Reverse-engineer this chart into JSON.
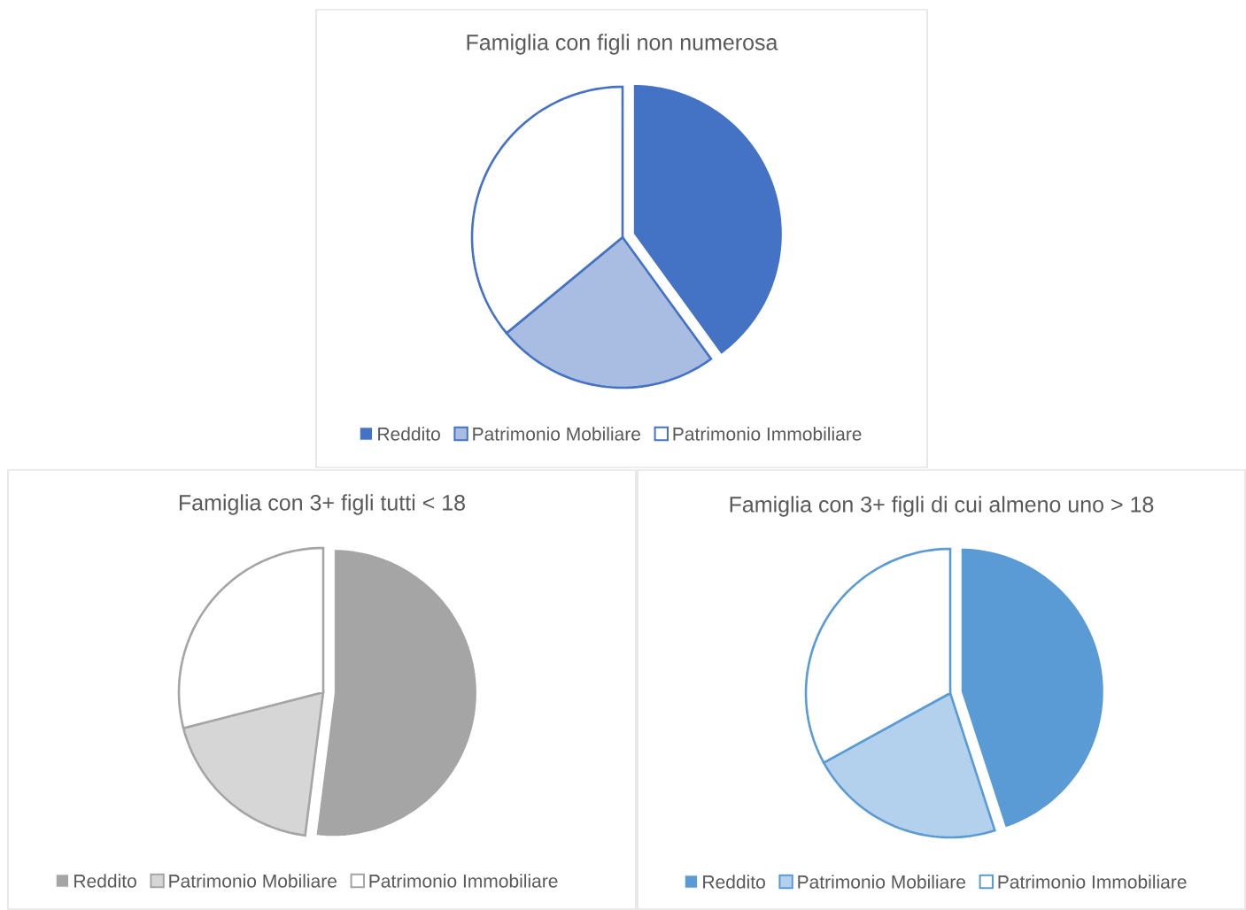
{
  "chart_data": [
    {
      "type": "pie",
      "title": "Famiglia con figli non numerosa",
      "categories": [
        "Reddito",
        "Patrimonio Mobiliare",
        "Patrimonio Immobiliare"
      ],
      "values": [
        40,
        24,
        36
      ],
      "colors": [
        "#4472c4",
        "#a9bde3",
        "#ffffff"
      ],
      "legend": "bottom"
    },
    {
      "type": "pie",
      "title": "Famiglia con 3+ figli tutti < 18",
      "categories": [
        "Reddito",
        "Patrimonio Mobiliare",
        "Patrimonio Immobiliare"
      ],
      "values": [
        52,
        19,
        29
      ],
      "colors": [
        "#a5a5a5",
        "#d6d6d6",
        "#ffffff"
      ],
      "legend": "bottom"
    },
    {
      "type": "pie",
      "title": "Famiglia con 3+ figli di cui almeno uno > 18",
      "categories": [
        "Reddito",
        "Patrimonio Mobiliare",
        "Patrimonio Immobiliare"
      ],
      "values": [
        45,
        22,
        33
      ],
      "colors": [
        "#5b9bd5",
        "#b3d1ed",
        "#ffffff"
      ],
      "legend": "bottom"
    }
  ]
}
